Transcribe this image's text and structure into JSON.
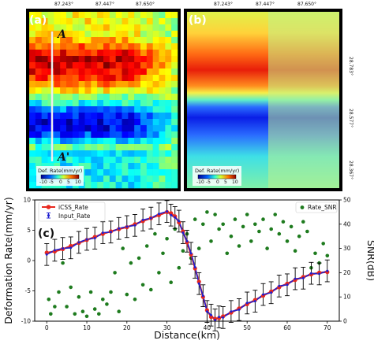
{
  "panels": {
    "a": {
      "label": "(a)",
      "lon_ticks": [
        "87.243°",
        "87.447°",
        "87.650°"
      ],
      "profile_start": "A",
      "profile_end": "A'",
      "colorbar_title": "Def. Rate(mm/yr)",
      "colorbar_ticks": [
        "-10",
        "-5",
        "0",
        "5",
        "10"
      ]
    },
    "b": {
      "label": "(b)",
      "lon_ticks": [
        "87.243°",
        "87.447°",
        "87.650°"
      ],
      "lat_ticks": [
        "28.783°",
        "28.577°",
        "28.367°"
      ],
      "colorbar_title": "Def. Rate(mm/yr)",
      "colorbar_ticks": [
        "-10",
        "-5",
        "0",
        "5",
        "10"
      ]
    }
  },
  "colors": {
    "icss": "#e8281e",
    "input": "#1f1fd0",
    "snr": "#1e7b1e",
    "errorbar": "#000000"
  },
  "chart_data": {
    "type": "line",
    "panel_label": "(c)",
    "xlabel": "Distance(km)",
    "ylabel": "Deformation Rate(mm/yr)",
    "y2label": "SNR(dB)",
    "xlim": [
      -3,
      73
    ],
    "ylim": [
      -10,
      10
    ],
    "y2lim": [
      0,
      50
    ],
    "xticks": [
      0,
      10,
      20,
      30,
      40,
      50,
      60,
      70
    ],
    "yticks": [
      -10,
      -5,
      0,
      5,
      10
    ],
    "y2ticks": [
      0,
      10,
      20,
      30,
      40,
      50
    ],
    "legend_left": {
      "placement": "top-left",
      "entries": [
        "iCSS_Rate",
        "Input_Rate"
      ]
    },
    "legend_right": {
      "placement": "top-right",
      "entries": [
        "Rate_SNR"
      ]
    },
    "x": [
      0,
      2,
      4,
      6,
      8,
      10,
      12,
      14,
      16,
      18,
      20,
      22,
      24,
      26,
      28,
      30,
      31,
      32,
      33,
      34,
      35,
      36,
      37,
      38,
      39,
      40,
      41,
      42,
      43,
      44,
      46,
      48,
      50,
      52,
      54,
      56,
      58,
      60,
      62,
      64,
      66,
      68,
      70
    ],
    "series": [
      {
        "name": "iCSS_Rate",
        "values": [
          1.3,
          1.5,
          1.9,
          2.4,
          2.9,
          3.4,
          3.9,
          4.4,
          4.8,
          5.2,
          5.5,
          6.0,
          6.5,
          7.0,
          7.5,
          8.0,
          7.8,
          7.3,
          6.3,
          4.8,
          3.0,
          1.0,
          -1.3,
          -3.5,
          -6.0,
          -8.2,
          -9.3,
          -9.6,
          -9.5,
          -9.2,
          -8.6,
          -7.9,
          -7.2,
          -6.5,
          -5.8,
          -5.1,
          -4.4,
          -3.8,
          -3.2,
          -2.7,
          -2.3,
          -2.0,
          -1.9
        ]
      },
      {
        "name": "Input_Rate",
        "values": [
          1.0,
          1.7,
          2.0,
          2.1,
          3.0,
          3.5,
          3.7,
          4.6,
          4.7,
          5.3,
          5.6,
          5.8,
          6.7,
          7.0,
          7.7,
          8.1,
          7.5,
          7.1,
          6.5,
          4.6,
          3.2,
          1.2,
          -1.1,
          -3.8,
          -5.8,
          -8.4,
          -9.0,
          -9.8,
          -9.3,
          -9.4,
          -8.4,
          -8.1,
          -7.0,
          -6.7,
          -5.6,
          -5.3,
          -4.2,
          -4.0,
          -3.0,
          -2.9,
          -2.1,
          -2.2,
          -1.7
        ]
      }
    ],
    "snr_points": [
      [
        0.5,
        9
      ],
      [
        1,
        3
      ],
      [
        2,
        6
      ],
      [
        3,
        12
      ],
      [
        4,
        24
      ],
      [
        5,
        6
      ],
      [
        6,
        14
      ],
      [
        7,
        3
      ],
      [
        8,
        10
      ],
      [
        9,
        4
      ],
      [
        10,
        2
      ],
      [
        11,
        12
      ],
      [
        12,
        5
      ],
      [
        13,
        3
      ],
      [
        14,
        9
      ],
      [
        15,
        7
      ],
      [
        16,
        12
      ],
      [
        17,
        20
      ],
      [
        18,
        4
      ],
      [
        19,
        30
      ],
      [
        20,
        11
      ],
      [
        21,
        24
      ],
      [
        22,
        9
      ],
      [
        23,
        26
      ],
      [
        24,
        15
      ],
      [
        25,
        31
      ],
      [
        26,
        13
      ],
      [
        27,
        36
      ],
      [
        28,
        20
      ],
      [
        29,
        28
      ],
      [
        30,
        34
      ],
      [
        31,
        16
      ],
      [
        32,
        38
      ],
      [
        33,
        22
      ],
      [
        34,
        29
      ],
      [
        35,
        36
      ],
      [
        36,
        26
      ],
      [
        37,
        42
      ],
      [
        38,
        30
      ],
      [
        39,
        40
      ],
      [
        40,
        45
      ],
      [
        41,
        33
      ],
      [
        42,
        44
      ],
      [
        43,
        38
      ],
      [
        44,
        40
      ],
      [
        45,
        28
      ],
      [
        46,
        35
      ],
      [
        47,
        42
      ],
      [
        48,
        31
      ],
      [
        49,
        39
      ],
      [
        50,
        44
      ],
      [
        51,
        33
      ],
      [
        52,
        40
      ],
      [
        53,
        37
      ],
      [
        54,
        42
      ],
      [
        55,
        30
      ],
      [
        56,
        38
      ],
      [
        57,
        44
      ],
      [
        58,
        36
      ],
      [
        59,
        41
      ],
      [
        60,
        33
      ],
      [
        61,
        39
      ],
      [
        62,
        29
      ],
      [
        63,
        35
      ],
      [
        64,
        41
      ],
      [
        65,
        37
      ],
      [
        66,
        22
      ],
      [
        67,
        28
      ],
      [
        68,
        24
      ],
      [
        69,
        32
      ],
      [
        70,
        27
      ]
    ]
  }
}
